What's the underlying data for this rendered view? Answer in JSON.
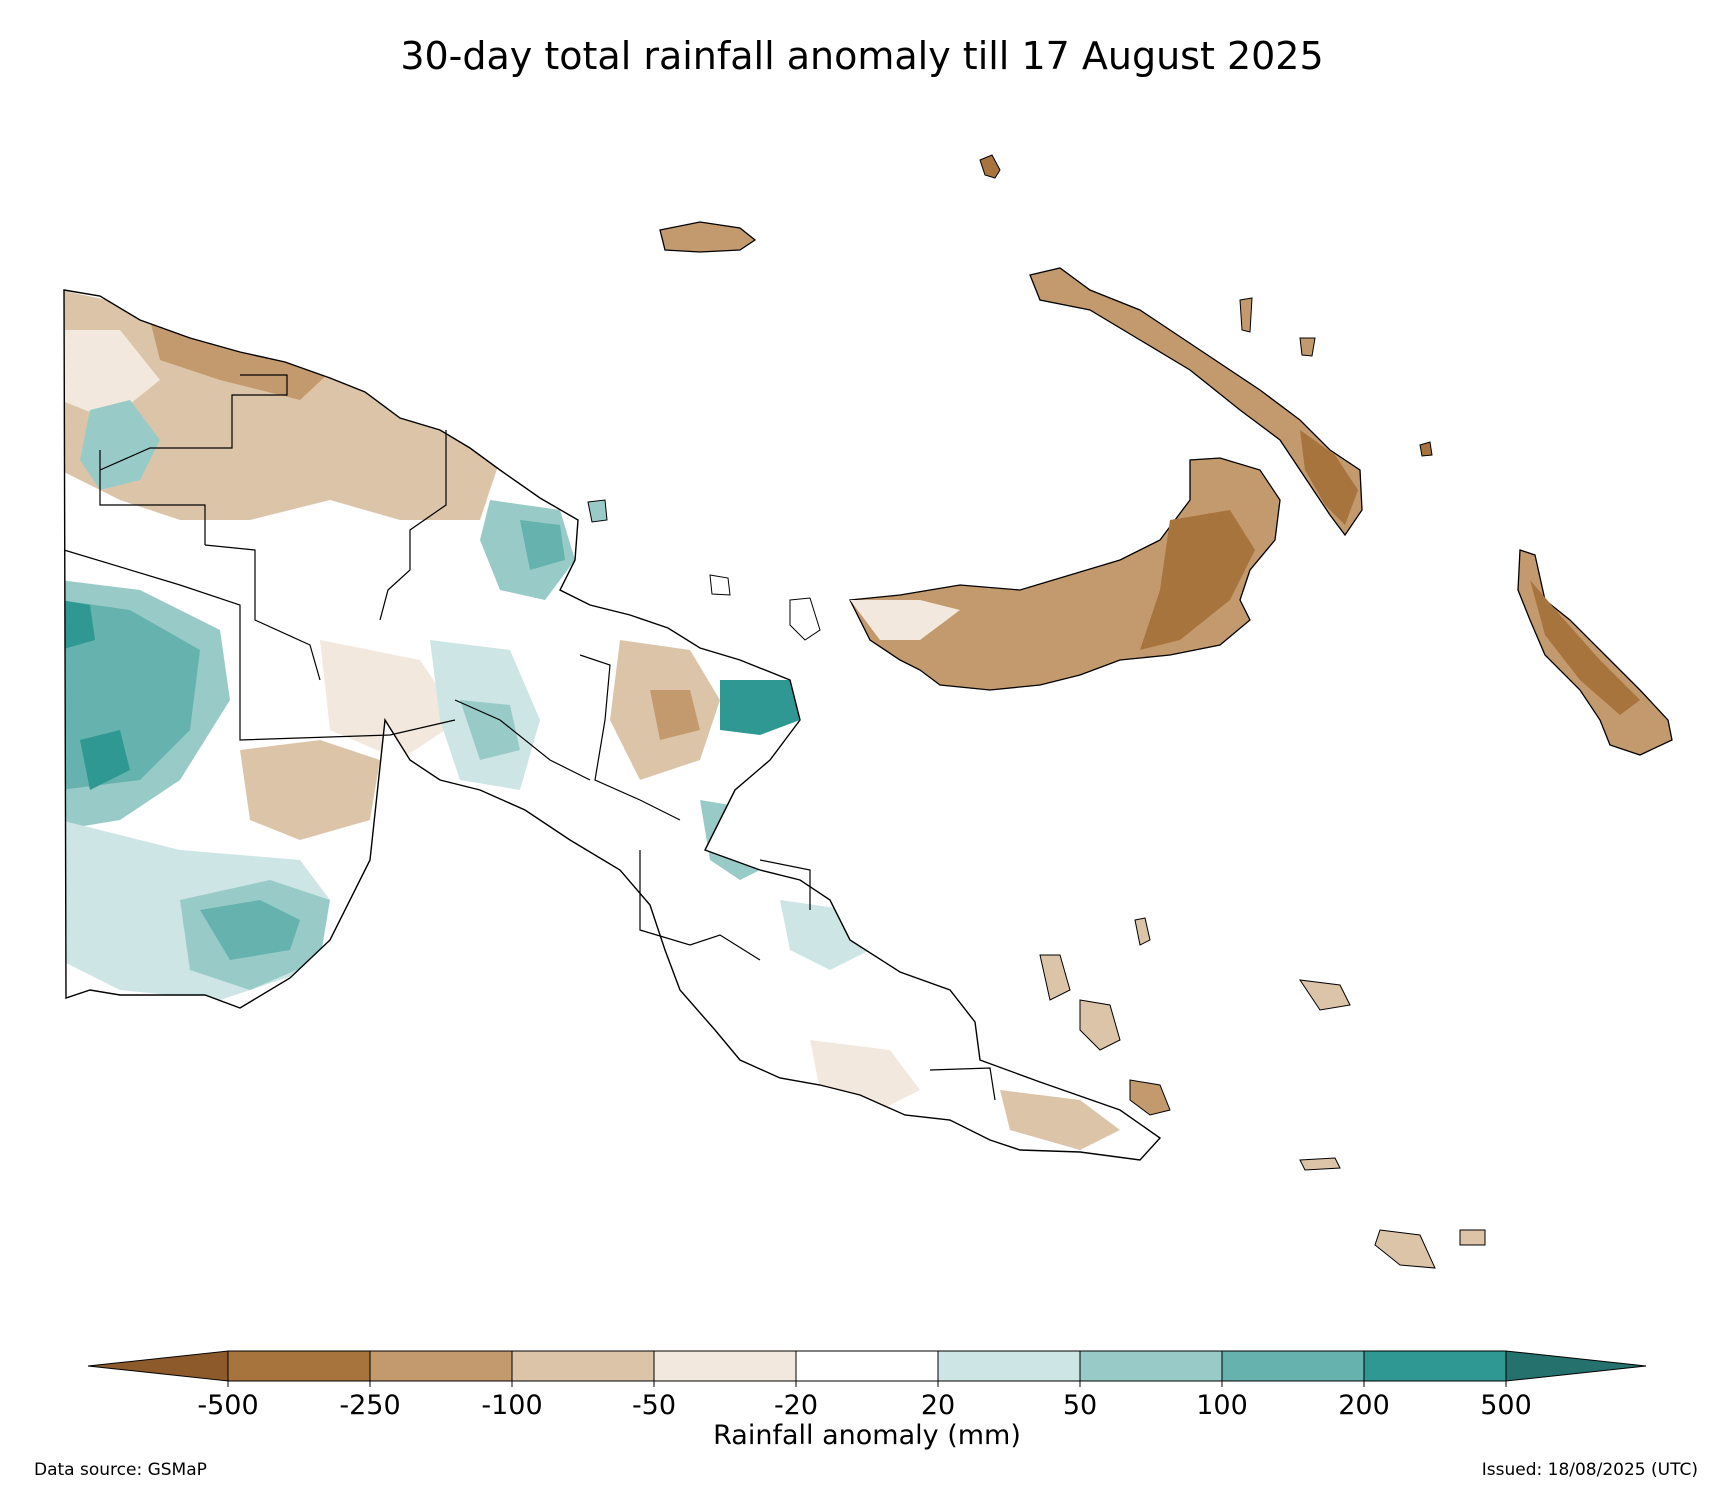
{
  "title": "30-day total rainfall anomaly till 17 August 2025",
  "colorbar": {
    "label": "Rainfall anomaly (mm)",
    "ticks": [
      "-500",
      "-250",
      "-100",
      "-50",
      "-20",
      "20",
      "50",
      "100",
      "200",
      "500"
    ],
    "under_color": "#8c5a2b",
    "over_color": "#24716e",
    "bins": [
      {
        "from": -500,
        "to": -250,
        "color": "#a8743e"
      },
      {
        "from": -250,
        "to": -100,
        "color": "#c39a6e"
      },
      {
        "from": -100,
        "to": -50,
        "color": "#dcc4a9"
      },
      {
        "from": -50,
        "to": -20,
        "color": "#f2e8dd"
      },
      {
        "from": -20,
        "to": 20,
        "color": "#ffffff"
      },
      {
        "from": 20,
        "to": 50,
        "color": "#cde5e4"
      },
      {
        "from": 50,
        "to": 100,
        "color": "#98cbc8"
      },
      {
        "from": 100,
        "to": 200,
        "color": "#66b2ae"
      },
      {
        "from": 200,
        "to": 500,
        "color": "#2f9893"
      }
    ]
  },
  "footer": {
    "source": "Data source: GSMaP",
    "issued": "Issued: 18/08/2025 (UTC)"
  }
}
